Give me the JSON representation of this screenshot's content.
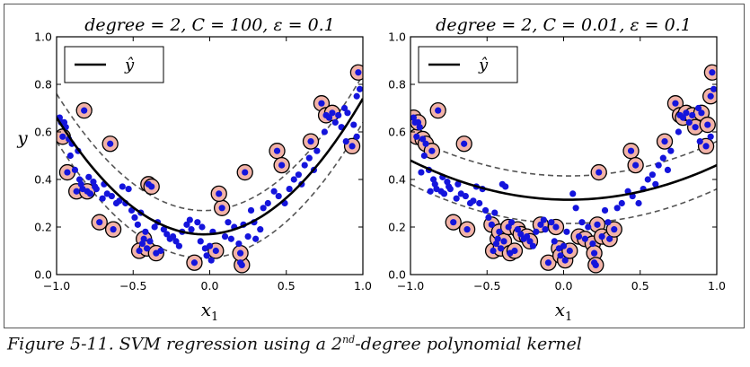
{
  "figure": {
    "caption_prefix": "Figure 5-11. SVM regression using a 2",
    "caption_sup": "nd",
    "caption_suffix": "-degree polynomial kernel"
  },
  "colors": {
    "point": "#1414dc",
    "support_fill": "#f2b3a8",
    "support_edge": "#000000",
    "curve": "#000000",
    "margin": "#555555"
  },
  "data_points": [
    [
      -0.98,
      0.66
    ],
    [
      -0.97,
      0.64
    ],
    [
      -0.96,
      0.58
    ],
    [
      -0.95,
      0.64
    ],
    [
      -0.94,
      0.62
    ],
    [
      -0.93,
      0.43
    ],
    [
      -0.92,
      0.57
    ],
    [
      -0.9,
      0.55
    ],
    [
      -0.88,
      0.44
    ],
    [
      -0.87,
      0.35
    ],
    [
      -0.86,
      0.52
    ],
    [
      -0.85,
      0.4
    ],
    [
      -0.84,
      0.38
    ],
    [
      -0.83,
      0.36
    ],
    [
      -0.82,
      0.69
    ],
    [
      -0.8,
      0.35
    ],
    [
      -0.79,
      0.41
    ],
    [
      -0.78,
      0.34
    ],
    [
      -0.76,
      0.39
    ],
    [
      -0.75,
      0.37
    ],
    [
      -0.74,
      0.36
    ],
    [
      -0.72,
      0.22
    ],
    [
      -0.7,
      0.32
    ],
    [
      -0.69,
      0.38
    ],
    [
      -0.67,
      0.34
    ],
    [
      -0.65,
      0.55
    ],
    [
      -0.64,
      0.33
    ],
    [
      -0.63,
      0.19
    ],
    [
      -0.61,
      0.3
    ],
    [
      -0.59,
      0.31
    ],
    [
      -0.57,
      0.37
    ],
    [
      -0.55,
      0.3
    ],
    [
      -0.53,
      0.36
    ],
    [
      -0.51,
      0.27
    ],
    [
      -0.49,
      0.24
    ],
    [
      -0.47,
      0.21
    ],
    [
      -0.46,
      0.1
    ],
    [
      -0.45,
      0.26
    ],
    [
      -0.44,
      0.13
    ],
    [
      -0.43,
      0.15
    ],
    [
      -0.42,
      0.18
    ],
    [
      -0.41,
      0.11
    ],
    [
      -0.4,
      0.38
    ],
    [
      -0.39,
      0.14
    ],
    [
      -0.38,
      0.37
    ],
    [
      -0.36,
      0.2
    ],
    [
      -0.35,
      0.09
    ],
    [
      -0.34,
      0.22
    ],
    [
      -0.32,
      0.1
    ],
    [
      -0.3,
      0.19
    ],
    [
      -0.28,
      0.17
    ],
    [
      -0.26,
      0.15
    ],
    [
      -0.24,
      0.16
    ],
    [
      -0.22,
      0.14
    ],
    [
      -0.2,
      0.12
    ],
    [
      -0.18,
      0.18
    ],
    [
      -0.15,
      0.21
    ],
    [
      -0.13,
      0.23
    ],
    [
      -0.12,
      0.19
    ],
    [
      -0.1,
      0.05
    ],
    [
      -0.08,
      0.22
    ],
    [
      -0.06,
      0.14
    ],
    [
      -0.05,
      0.2
    ],
    [
      -0.03,
      0.11
    ],
    [
      -0.02,
      0.08
    ],
    [
      0.0,
      0.12
    ],
    [
      0.01,
      0.06
    ],
    [
      0.02,
      0.18
    ],
    [
      0.04,
      0.1
    ],
    [
      0.06,
      0.34
    ],
    [
      0.08,
      0.28
    ],
    [
      0.1,
      0.16
    ],
    [
      0.12,
      0.22
    ],
    [
      0.14,
      0.15
    ],
    [
      0.16,
      0.2
    ],
    [
      0.19,
      0.13
    ],
    [
      0.2,
      0.09
    ],
    [
      0.2,
      0.05
    ],
    [
      0.21,
      0.04
    ],
    [
      0.22,
      0.21
    ],
    [
      0.23,
      0.43
    ],
    [
      0.25,
      0.16
    ],
    [
      0.27,
      0.27
    ],
    [
      0.29,
      0.22
    ],
    [
      0.3,
      0.15
    ],
    [
      0.33,
      0.19
    ],
    [
      0.35,
      0.28
    ],
    [
      0.38,
      0.3
    ],
    [
      0.42,
      0.35
    ],
    [
      0.44,
      0.52
    ],
    [
      0.45,
      0.33
    ],
    [
      0.47,
      0.46
    ],
    [
      0.49,
      0.3
    ],
    [
      0.52,
      0.36
    ],
    [
      0.55,
      0.4
    ],
    [
      0.58,
      0.42
    ],
    [
      0.6,
      0.38
    ],
    [
      0.62,
      0.46
    ],
    [
      0.65,
      0.49
    ],
    [
      0.66,
      0.56
    ],
    [
      0.68,
      0.44
    ],
    [
      0.7,
      0.52
    ],
    [
      0.73,
      0.72
    ],
    [
      0.75,
      0.6
    ],
    [
      0.76,
      0.67
    ],
    [
      0.78,
      0.66
    ],
    [
      0.8,
      0.68
    ],
    [
      0.82,
      0.64
    ],
    [
      0.84,
      0.67
    ],
    [
      0.86,
      0.62
    ],
    [
      0.88,
      0.7
    ],
    [
      0.9,
      0.68
    ],
    [
      0.93,
      0.54
    ],
    [
      0.94,
      0.63
    ],
    [
      0.96,
      0.75
    ],
    [
      0.97,
      0.85
    ],
    [
      0.98,
      0.78
    ],
    [
      0.96,
      0.58
    ],
    [
      0.89,
      0.56
    ],
    [
      -0.91,
      0.5
    ]
  ],
  "chart_data": [
    {
      "type": "scatter",
      "title": "degree = 2, C = 100, ε = 0.1",
      "xlabel": "x1",
      "ylabel": "y",
      "xlim": [
        -1.0,
        1.0
      ],
      "ylim": [
        0.0,
        1.0
      ],
      "xticks": [
        "−1.0",
        "−0.5",
        "0.0",
        "0.5",
        "1.0"
      ],
      "xtick_values": [
        -1.0,
        -0.5,
        0.0,
        0.5,
        1.0
      ],
      "yticks": [
        "0.0",
        "0.2",
        "0.4",
        "0.6",
        "0.8",
        "1.0"
      ],
      "ytick_values": [
        0.0,
        0.2,
        0.4,
        0.6,
        0.8,
        1.0
      ],
      "legend": {
        "label": "ŷ",
        "placement": "top-left"
      },
      "epsilon": 0.1,
      "curve_coeffs": [
        0.17,
        0.04,
        0.53
      ],
      "support_points": [
        [
          -0.96,
          0.58
        ],
        [
          -0.93,
          0.43
        ],
        [
          -0.87,
          0.35
        ],
        [
          -0.82,
          0.69
        ],
        [
          -0.8,
          0.35
        ],
        [
          -0.72,
          0.22
        ],
        [
          -0.65,
          0.55
        ],
        [
          -0.63,
          0.19
        ],
        [
          -0.4,
          0.38
        ],
        [
          -0.38,
          0.37
        ],
        [
          -0.43,
          0.15
        ],
        [
          -0.46,
          0.1
        ],
        [
          -0.41,
          0.11
        ],
        [
          -0.35,
          0.09
        ],
        [
          -0.1,
          0.05
        ],
        [
          0.04,
          0.1
        ],
        [
          0.08,
          0.28
        ],
        [
          0.06,
          0.34
        ],
        [
          0.21,
          0.04
        ],
        [
          0.2,
          0.09
        ],
        [
          0.23,
          0.43
        ],
        [
          0.44,
          0.52
        ],
        [
          0.47,
          0.46
        ],
        [
          0.66,
          0.56
        ],
        [
          0.73,
          0.72
        ],
        [
          0.76,
          0.67
        ],
        [
          0.8,
          0.68
        ],
        [
          0.93,
          0.54
        ],
        [
          0.97,
          0.85
        ]
      ]
    },
    {
      "type": "scatter",
      "title": "degree = 2, C = 0.01, ε = 0.1",
      "xlabel": "x1",
      "ylabel": "",
      "xlim": [
        -1.0,
        1.0
      ],
      "ylim": [
        0.0,
        1.0
      ],
      "xticks": [
        "−1.0",
        "−0.5",
        "0.0",
        "0.5",
        "1.0"
      ],
      "xtick_values": [
        -1.0,
        -0.5,
        0.0,
        0.5,
        1.0
      ],
      "yticks": [
        "0.0",
        "0.2",
        "0.4",
        "0.6",
        "0.8",
        "1.0"
      ],
      "ytick_values": [
        0.0,
        0.2,
        0.4,
        0.6,
        0.8,
        1.0
      ],
      "legend": {
        "label": "ŷ",
        "placement": "top-left"
      },
      "epsilon": 0.1,
      "curve_coeffs": [
        0.315,
        -0.01,
        0.155
      ],
      "support_points": [
        [
          -0.98,
          0.66
        ],
        [
          -0.96,
          0.58
        ],
        [
          -0.95,
          0.64
        ],
        [
          -0.92,
          0.57
        ],
        [
          -0.9,
          0.55
        ],
        [
          -0.86,
          0.52
        ],
        [
          -0.82,
          0.69
        ],
        [
          -0.72,
          0.22
        ],
        [
          -0.65,
          0.55
        ],
        [
          -0.63,
          0.19
        ],
        [
          -0.47,
          0.21
        ],
        [
          -0.46,
          0.1
        ],
        [
          -0.43,
          0.15
        ],
        [
          -0.42,
          0.18
        ],
        [
          -0.41,
          0.11
        ],
        [
          -0.39,
          0.14
        ],
        [
          -0.36,
          0.2
        ],
        [
          -0.35,
          0.09
        ],
        [
          -0.32,
          0.1
        ],
        [
          -0.3,
          0.19
        ],
        [
          -0.28,
          0.17
        ],
        [
          -0.24,
          0.16
        ],
        [
          -0.22,
          0.14
        ],
        [
          -0.15,
          0.21
        ],
        [
          -0.1,
          0.05
        ],
        [
          -0.05,
          0.2
        ],
        [
          -0.03,
          0.11
        ],
        [
          -0.02,
          0.08
        ],
        [
          0.01,
          0.06
        ],
        [
          0.04,
          0.1
        ],
        [
          0.1,
          0.16
        ],
        [
          0.14,
          0.15
        ],
        [
          0.19,
          0.13
        ],
        [
          0.2,
          0.09
        ],
        [
          0.21,
          0.04
        ],
        [
          0.22,
          0.21
        ],
        [
          0.23,
          0.43
        ],
        [
          0.25,
          0.16
        ],
        [
          0.3,
          0.15
        ],
        [
          0.33,
          0.19
        ],
        [
          0.44,
          0.52
        ],
        [
          0.47,
          0.46
        ],
        [
          0.66,
          0.56
        ],
        [
          0.73,
          0.72
        ],
        [
          0.76,
          0.67
        ],
        [
          0.78,
          0.66
        ],
        [
          0.8,
          0.68
        ],
        [
          0.84,
          0.67
        ],
        [
          0.86,
          0.62
        ],
        [
          0.9,
          0.68
        ],
        [
          0.93,
          0.54
        ],
        [
          0.94,
          0.63
        ],
        [
          0.96,
          0.75
        ],
        [
          0.97,
          0.85
        ]
      ]
    }
  ]
}
